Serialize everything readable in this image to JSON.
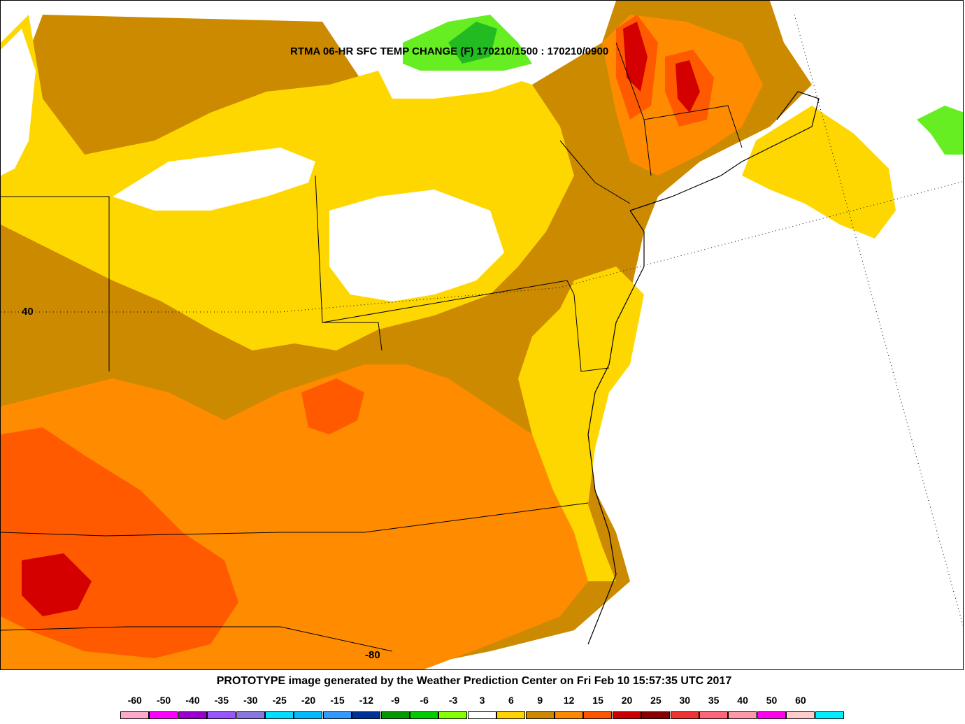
{
  "map": {
    "title": "RTMA 06-HR SFC TEMP CHANGE (F) 170210/1500 : 170210/0900",
    "lat_label": "40",
    "lon_label": "-80"
  },
  "footer": {
    "credit": "PROTOTYPE image generated by the Weather Prediction Center on Fri Feb 10 15:57:35 UTC 2017"
  },
  "legend": {
    "labels": [
      "-60",
      "-50",
      "-40",
      "-35",
      "-30",
      "-25",
      "-20",
      "-15",
      "-12",
      "-9",
      "-6",
      "-3",
      "3",
      "6",
      "9",
      "12",
      "15",
      "20",
      "25",
      "30",
      "35",
      "40",
      "50",
      "60"
    ],
    "colors": [
      "#ffaacc",
      "#ff00ff",
      "#9900cc",
      "#9955ff",
      "#8877dd",
      "#00ddff",
      "#00bbff",
      "#3399ff",
      "#003399",
      "#009900",
      "#00cc00",
      "#88ff00",
      "#ffffff",
      "#ffd200",
      "#cc8800",
      "#ff8800",
      "#ff5500",
      "#cc0000",
      "#880000",
      "#ee3333",
      "#ff6677",
      "#ff99aa",
      "#ff00ee",
      "#ffcccc",
      "#00eeff"
    ],
    "palette": {
      "temp_3_6": "#ffd700",
      "temp_6_9": "#cc8a00",
      "temp_9_12": "#ff8c00",
      "temp_12_15": "#ff5a00",
      "temp_15_20": "#d40000",
      "temp_minus6_minus3": "#66ee22",
      "temp_minus9_minus6": "#22bb22"
    }
  }
}
